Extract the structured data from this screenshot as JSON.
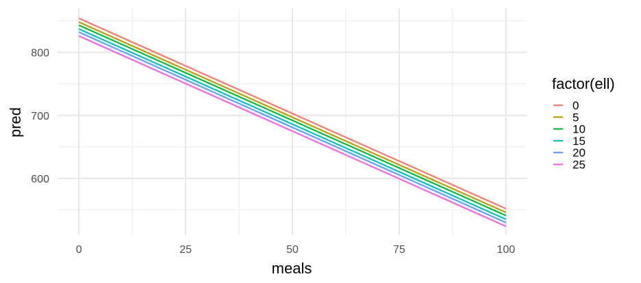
{
  "chart_data": {
    "type": "line",
    "title": "",
    "xlabel": "meals",
    "ylabel": "pred",
    "xlim": [
      -5,
      105
    ],
    "ylim": [
      510,
      870
    ],
    "x_ticks": [
      0,
      25,
      50,
      75,
      100
    ],
    "x_minor_ticks": [
      12.5,
      37.5,
      62.5,
      87.5
    ],
    "y_ticks": [
      600,
      700,
      800
    ],
    "y_minor_ticks": [
      550,
      650,
      750,
      850
    ],
    "grid": true,
    "legend": {
      "title": "factor(ell)",
      "position": "right"
    },
    "x": [
      0,
      100
    ],
    "series": [
      {
        "name": "0",
        "color": "#F8766D",
        "values": [
          854,
          552
        ]
      },
      {
        "name": "5",
        "color": "#B79F00",
        "values": [
          848,
          546
        ]
      },
      {
        "name": "10",
        "color": "#00BA38",
        "values": [
          843,
          541
        ]
      },
      {
        "name": "15",
        "color": "#00BFC4",
        "values": [
          837,
          535
        ]
      },
      {
        "name": "20",
        "color": "#619CFF",
        "values": [
          832,
          530
        ]
      },
      {
        "name": "25",
        "color": "#F564E3",
        "values": [
          826,
          524
        ]
      }
    ]
  }
}
